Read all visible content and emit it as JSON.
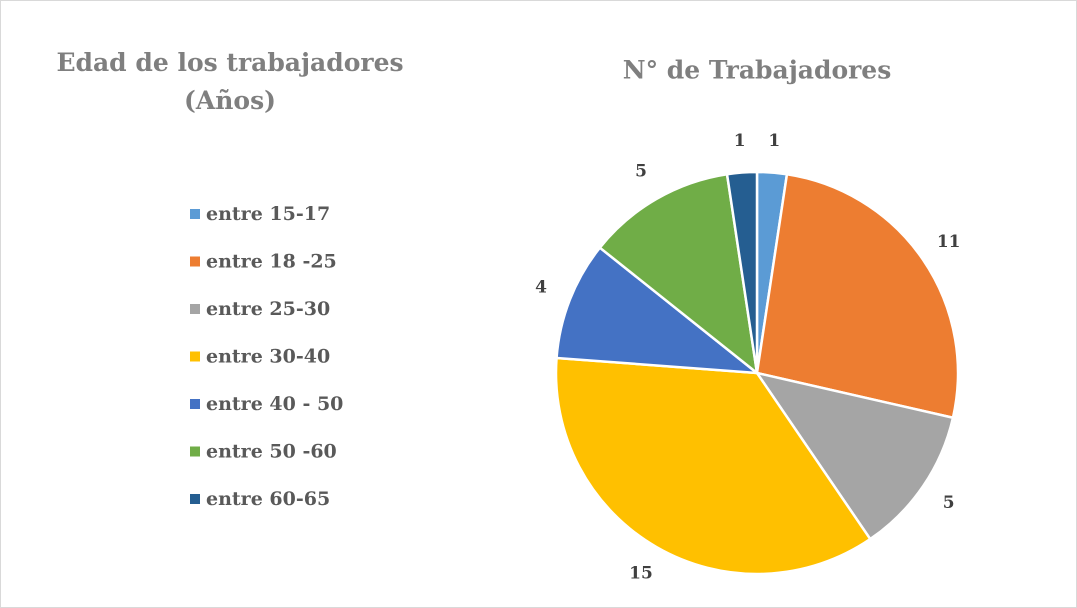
{
  "chart_data": {
    "type": "pie",
    "title": "N° de Trabajadores",
    "legend_title": "Edad de los trabajadores (Años)",
    "categories": [
      "entre 15-17",
      "entre 18 -25",
      "entre 25-30",
      "entre 30-40",
      "entre 40 - 50",
      "entre 50 -60",
      "entre 60-65"
    ],
    "values": [
      1,
      11,
      5,
      15,
      4,
      5,
      1
    ],
    "colors": [
      "#5b9bd5",
      "#ed7d31",
      "#a5a5a5",
      "#ffc000",
      "#4472c4",
      "#70ad47",
      "#255e91"
    ],
    "legend_position": "left"
  }
}
